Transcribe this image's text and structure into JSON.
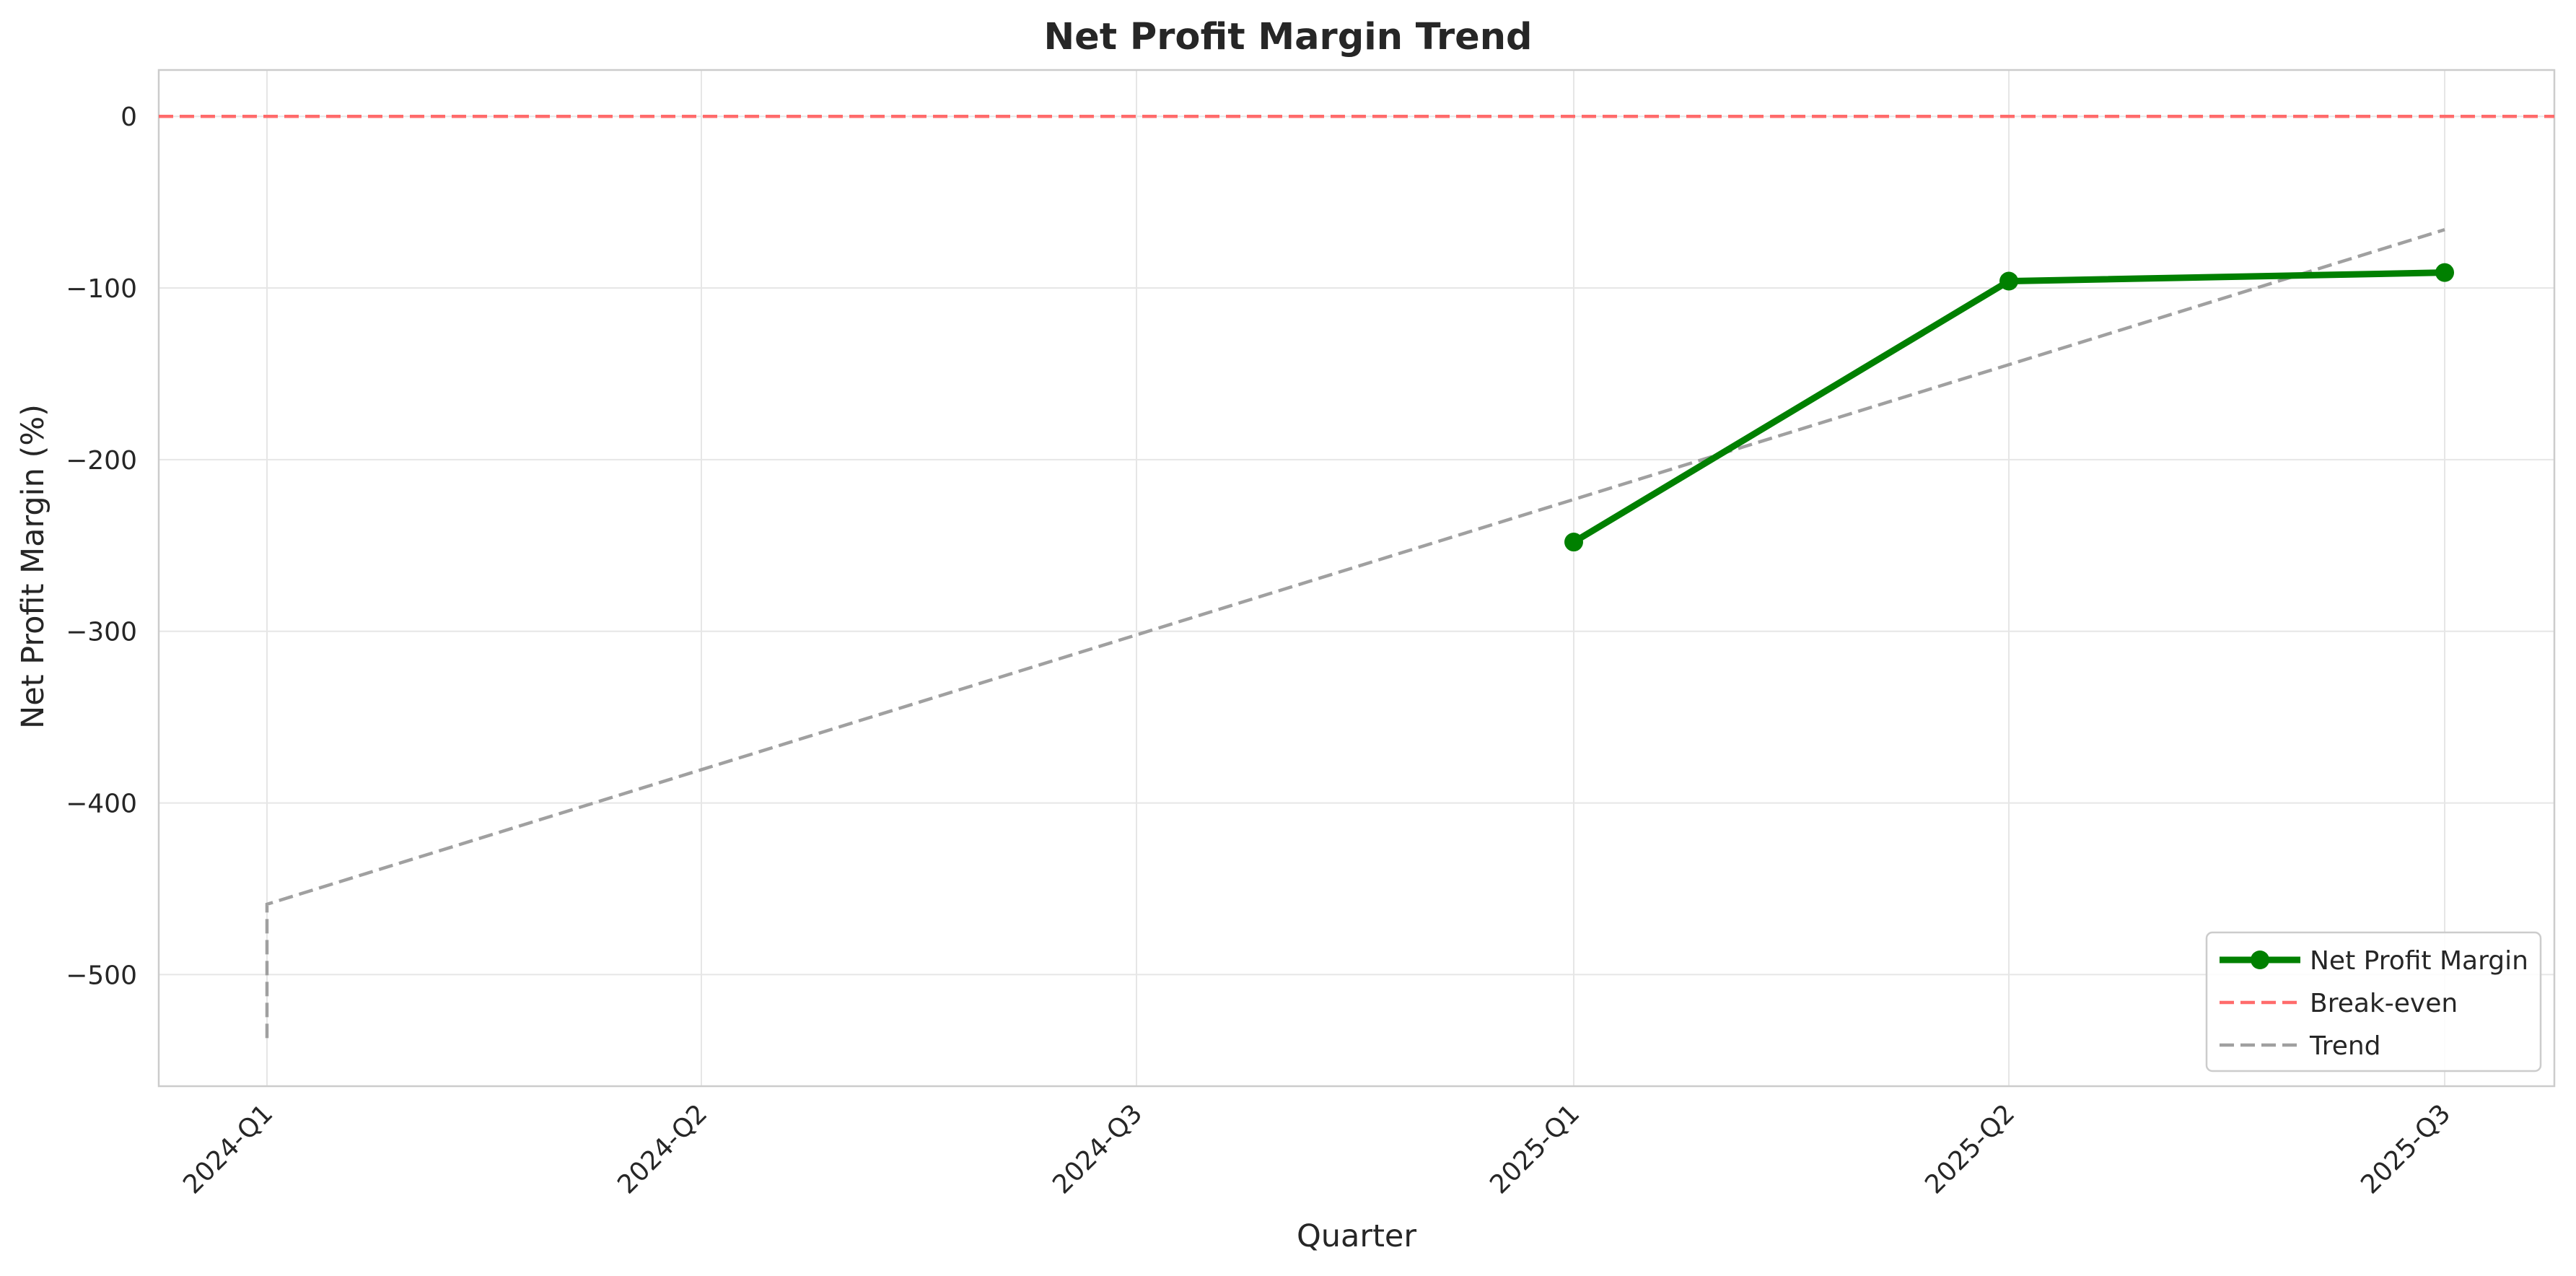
{
  "chart_data": {
    "type": "line",
    "title": "Net Profit Margin Trend",
    "xlabel": "Quarter",
    "ylabel": "Net Profit Margin (%)",
    "categories": [
      "2024-Q1",
      "2024-Q2",
      "2024-Q3",
      "2025-Q1",
      "2025-Q2",
      "2025-Q3"
    ],
    "ylim": [
      -565,
      27
    ],
    "yticks": [
      0,
      -100,
      -200,
      -300,
      -400,
      -500
    ],
    "ytick_labels": [
      "0",
      "−100",
      "−200",
      "−300",
      "−400",
      "−500"
    ],
    "grid": true,
    "legend_position": "lower-right",
    "series": [
      {
        "name": "Net Profit Margin",
        "color": "#008000",
        "style": "solid-with-markers",
        "points": [
          {
            "category": "2025-Q1",
            "y": -248
          },
          {
            "category": "2025-Q2",
            "y": -96
          },
          {
            "category": "2025-Q3",
            "y": -91
          }
        ]
      },
      {
        "name": "Break-even",
        "color": "#ff6b6b",
        "style": "dashed-horizontal",
        "y": 0
      },
      {
        "name": "Trend",
        "color": "#a0a0a0",
        "style": "dashed",
        "points": [
          {
            "category": "2024-Q1",
            "y": -537
          },
          {
            "category": "2024-Q1",
            "y": -459
          },
          {
            "category": "2025-Q3",
            "y": -66
          }
        ]
      }
    ]
  }
}
